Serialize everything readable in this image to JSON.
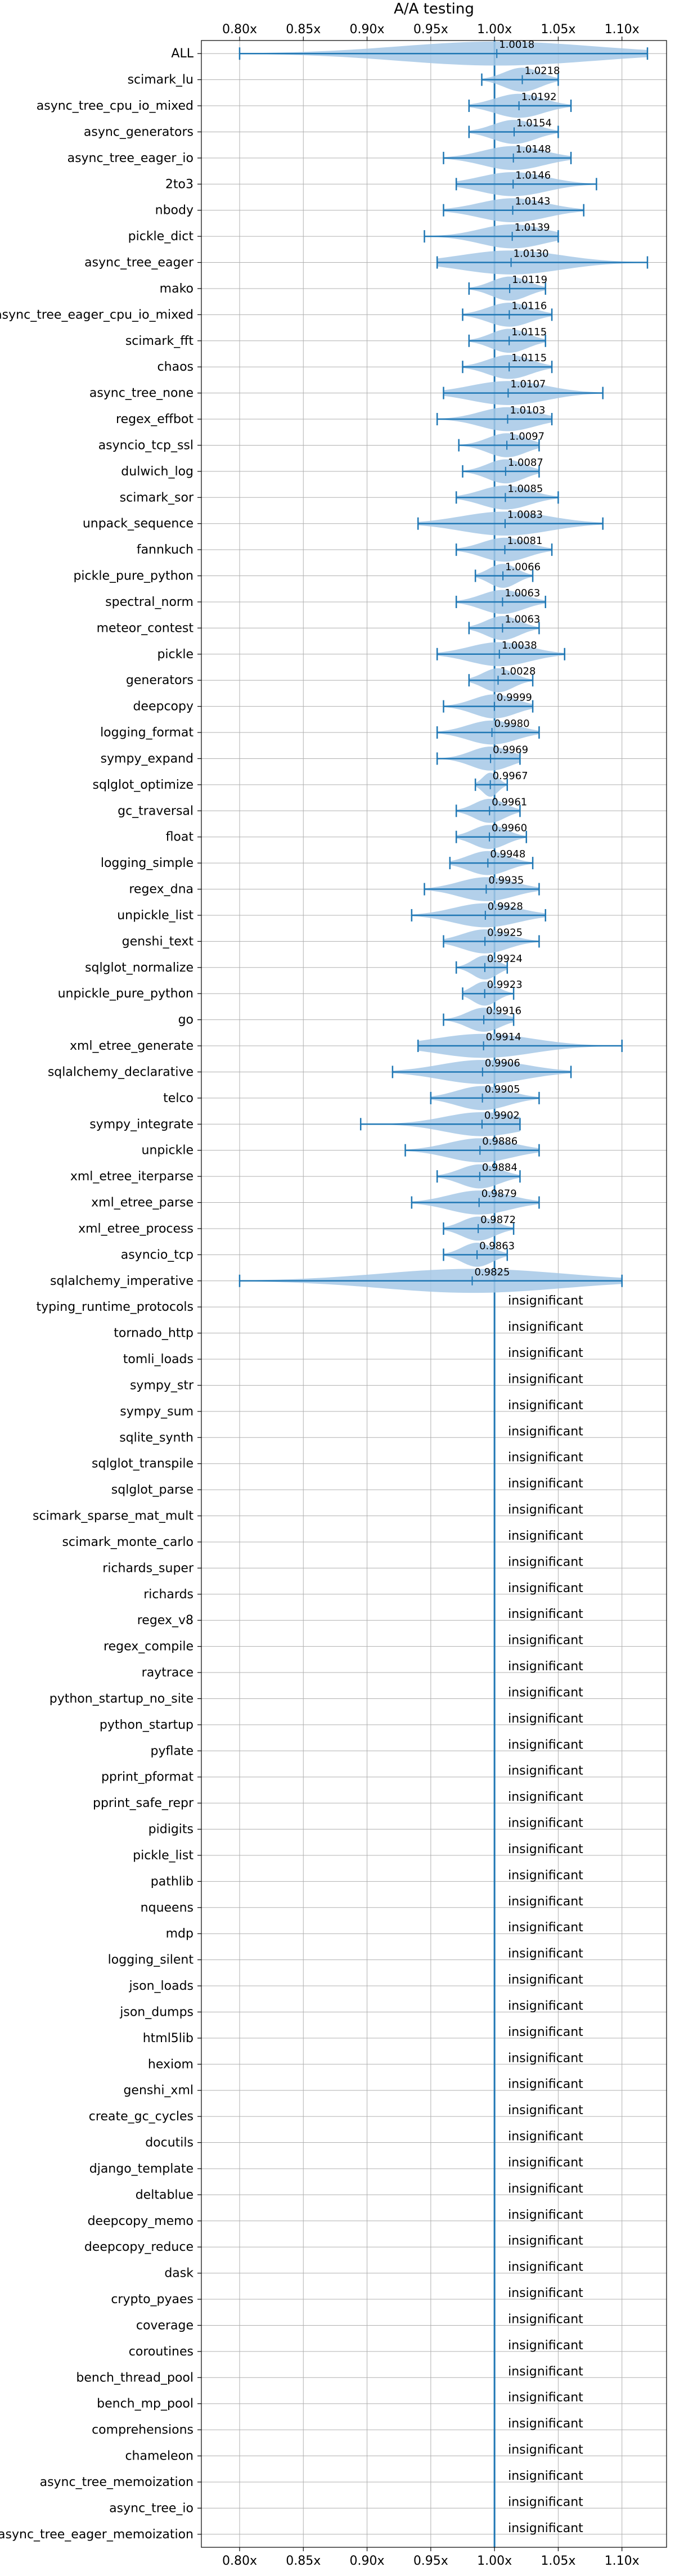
{
  "chart_data": {
    "type": "violin",
    "title": "A/A testing",
    "xlim": [
      0.77,
      1.135
    ],
    "x_ticks": [
      0.8,
      0.85,
      0.9,
      0.95,
      1.0,
      1.05,
      1.1
    ],
    "x_tick_labels": [
      "0.80x",
      "0.85x",
      "0.90x",
      "0.95x",
      "1.00x",
      "1.05x",
      "1.10x"
    ],
    "grid": true,
    "reference_line": 1.0,
    "colors": {
      "violin": "#a6c8e6",
      "line": "#1f77b4",
      "grid": "#b0b0b0"
    },
    "significant": [
      {
        "name": "ALL",
        "label": "1.0018",
        "value": 1.0018,
        "min": 0.8,
        "max": 1.12
      },
      {
        "name": "scimark_lu",
        "label": "1.0218",
        "value": 1.0218,
        "min": 0.99,
        "max": 1.05
      },
      {
        "name": "async_tree_cpu_io_mixed",
        "label": "1.0192",
        "value": 1.0192,
        "min": 0.98,
        "max": 1.06
      },
      {
        "name": "async_generators",
        "label": "1.0154",
        "value": 1.0154,
        "min": 0.98,
        "max": 1.05
      },
      {
        "name": "async_tree_eager_io",
        "label": "1.0148",
        "value": 1.0148,
        "min": 0.96,
        "max": 1.06
      },
      {
        "name": "2to3",
        "label": "1.0146",
        "value": 1.0146,
        "min": 0.97,
        "max": 1.08
      },
      {
        "name": "nbody",
        "label": "1.0143",
        "value": 1.0143,
        "min": 0.96,
        "max": 1.07
      },
      {
        "name": "pickle_dict",
        "label": "1.0139",
        "value": 1.0139,
        "min": 0.945,
        "max": 1.05
      },
      {
        "name": "async_tree_eager",
        "label": "1.0130",
        "value": 1.013,
        "min": 0.955,
        "max": 1.12
      },
      {
        "name": "mako",
        "label": "1.0119",
        "value": 1.0119,
        "min": 0.98,
        "max": 1.04
      },
      {
        "name": "async_tree_eager_cpu_io_mixed",
        "label": "1.0116",
        "value": 1.0116,
        "min": 0.975,
        "max": 1.045
      },
      {
        "name": "scimark_fft",
        "label": "1.0115",
        "value": 1.0115,
        "min": 0.98,
        "max": 1.04
      },
      {
        "name": "chaos",
        "label": "1.0115",
        "value": 1.0115,
        "min": 0.975,
        "max": 1.045
      },
      {
        "name": "async_tree_none",
        "label": "1.0107",
        "value": 1.0107,
        "min": 0.96,
        "max": 1.085
      },
      {
        "name": "regex_effbot",
        "label": "1.0103",
        "value": 1.0103,
        "min": 0.955,
        "max": 1.045
      },
      {
        "name": "asyncio_tcp_ssl",
        "label": "1.0097",
        "value": 1.0097,
        "min": 0.972,
        "max": 1.035
      },
      {
        "name": "dulwich_log",
        "label": "1.0087",
        "value": 1.0087,
        "min": 0.975,
        "max": 1.035
      },
      {
        "name": "scimark_sor",
        "label": "1.0085",
        "value": 1.0085,
        "min": 0.97,
        "max": 1.05
      },
      {
        "name": "unpack_sequence",
        "label": "1.0083",
        "value": 1.0083,
        "min": 0.94,
        "max": 1.085
      },
      {
        "name": "fannkuch",
        "label": "1.0081",
        "value": 1.0081,
        "min": 0.97,
        "max": 1.045
      },
      {
        "name": "pickle_pure_python",
        "label": "1.0066",
        "value": 1.0066,
        "min": 0.985,
        "max": 1.03
      },
      {
        "name": "spectral_norm",
        "label": "1.0063",
        "value": 1.0063,
        "min": 0.97,
        "max": 1.04
      },
      {
        "name": "meteor_contest",
        "label": "1.0063",
        "value": 1.0063,
        "min": 0.98,
        "max": 1.035
      },
      {
        "name": "pickle",
        "label": "1.0038",
        "value": 1.0038,
        "min": 0.955,
        "max": 1.055
      },
      {
        "name": "generators",
        "label": "1.0028",
        "value": 1.0028,
        "min": 0.98,
        "max": 1.03
      },
      {
        "name": "deepcopy",
        "label": "0.9999",
        "value": 0.9999,
        "min": 0.96,
        "max": 1.03
      },
      {
        "name": "logging_format",
        "label": "0.9980",
        "value": 0.998,
        "min": 0.955,
        "max": 1.035
      },
      {
        "name": "sympy_expand",
        "label": "0.9969",
        "value": 0.9969,
        "min": 0.955,
        "max": 1.02
      },
      {
        "name": "sqlglot_optimize",
        "label": "0.9967",
        "value": 0.9967,
        "min": 0.985,
        "max": 1.01
      },
      {
        "name": "gc_traversal",
        "label": "0.9961",
        "value": 0.9961,
        "min": 0.97,
        "max": 1.02
      },
      {
        "name": "float",
        "label": "0.9960",
        "value": 0.996,
        "min": 0.97,
        "max": 1.025
      },
      {
        "name": "logging_simple",
        "label": "0.9948",
        "value": 0.9948,
        "min": 0.965,
        "max": 1.03
      },
      {
        "name": "regex_dna",
        "label": "0.9935",
        "value": 0.9935,
        "min": 0.945,
        "max": 1.035
      },
      {
        "name": "unpickle_list",
        "label": "0.9928",
        "value": 0.9928,
        "min": 0.935,
        "max": 1.04
      },
      {
        "name": "genshi_text",
        "label": "0.9925",
        "value": 0.9925,
        "min": 0.96,
        "max": 1.035
      },
      {
        "name": "sqlglot_normalize",
        "label": "0.9924",
        "value": 0.9924,
        "min": 0.97,
        "max": 1.01
      },
      {
        "name": "unpickle_pure_python",
        "label": "0.9923",
        "value": 0.9923,
        "min": 0.975,
        "max": 1.015
      },
      {
        "name": "go",
        "label": "0.9916",
        "value": 0.9916,
        "min": 0.96,
        "max": 1.015
      },
      {
        "name": "xml_etree_generate",
        "label": "0.9914",
        "value": 0.9914,
        "min": 0.94,
        "max": 1.1
      },
      {
        "name": "sqlalchemy_declarative",
        "label": "0.9906",
        "value": 0.9906,
        "min": 0.92,
        "max": 1.06
      },
      {
        "name": "telco",
        "label": "0.9905",
        "value": 0.9905,
        "min": 0.95,
        "max": 1.035
      },
      {
        "name": "sympy_integrate",
        "label": "0.9902",
        "value": 0.9902,
        "min": 0.895,
        "max": 1.02
      },
      {
        "name": "unpickle",
        "label": "0.9886",
        "value": 0.9886,
        "min": 0.93,
        "max": 1.035
      },
      {
        "name": "xml_etree_iterparse",
        "label": "0.9884",
        "value": 0.9884,
        "min": 0.955,
        "max": 1.02
      },
      {
        "name": "xml_etree_parse",
        "label": "0.9879",
        "value": 0.9879,
        "min": 0.935,
        "max": 1.035
      },
      {
        "name": "xml_etree_process",
        "label": "0.9872",
        "value": 0.9872,
        "min": 0.96,
        "max": 1.015
      },
      {
        "name": "asyncio_tcp",
        "label": "0.9863",
        "value": 0.9863,
        "min": 0.96,
        "max": 1.01
      },
      {
        "name": "sqlalchemy_imperative",
        "label": "0.9825",
        "value": 0.9825,
        "min": 0.8,
        "max": 1.1
      }
    ],
    "insignificant_label": "insignificant",
    "insignificant": [
      "typing_runtime_protocols",
      "tornado_http",
      "tomli_loads",
      "sympy_str",
      "sympy_sum",
      "sqlite_synth",
      "sqlglot_transpile",
      "sqlglot_parse",
      "scimark_sparse_mat_mult",
      "scimark_monte_carlo",
      "richards_super",
      "richards",
      "regex_v8",
      "regex_compile",
      "raytrace",
      "python_startup_no_site",
      "python_startup",
      "pyflate",
      "pprint_pformat",
      "pprint_safe_repr",
      "pidigits",
      "pickle_list",
      "pathlib",
      "nqueens",
      "mdp",
      "logging_silent",
      "json_loads",
      "json_dumps",
      "html5lib",
      "hexiom",
      "genshi_xml",
      "create_gc_cycles",
      "docutils",
      "django_template",
      "deltablue",
      "deepcopy_memo",
      "deepcopy_reduce",
      "dask",
      "crypto_pyaes",
      "coverage",
      "coroutines",
      "bench_thread_pool",
      "bench_mp_pool",
      "comprehensions",
      "chameleon",
      "async_tree_memoization",
      "async_tree_io",
      "async_tree_eager_memoization"
    ]
  }
}
